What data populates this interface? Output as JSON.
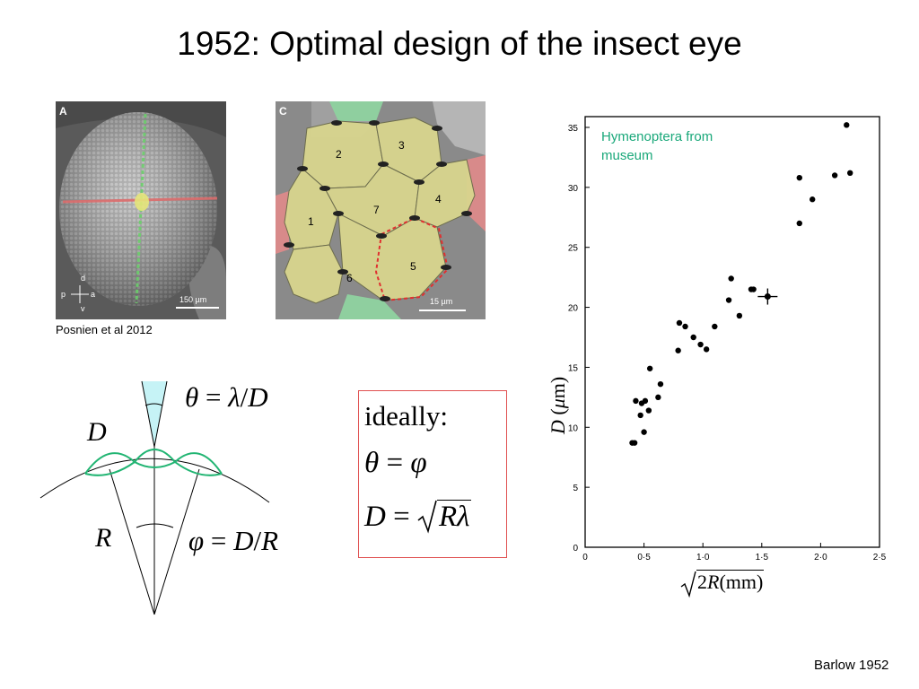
{
  "slide": {
    "title": "1952: Optimal design of the insect eye",
    "credit_left": "Posnien et al 2012",
    "credit_right": "Barlow 1952"
  },
  "panel_a": {
    "letter": "A",
    "scalebar": "150 µm",
    "axes_labels": [
      "d",
      "p",
      "a",
      "v"
    ],
    "colors": {
      "horizontal_line": "#e06a6a",
      "vertical_line": "#6ccf6c",
      "center": "#e6e67a"
    }
  },
  "panel_c": {
    "letter": "C",
    "scalebar": "15 µm",
    "facets": [
      "1",
      "2",
      "3",
      "4",
      "5",
      "6",
      "7"
    ],
    "colors": {
      "facet_fill": "#d8d58e",
      "neighbor_green": "#8fcf9f",
      "neighbor_red": "#d88a8a",
      "outline": "#e03030"
    }
  },
  "diagram": {
    "label_D": "D",
    "label_R": "R",
    "theta_eq": [
      "θ",
      "=",
      "λ",
      "/",
      "D"
    ],
    "phi_eq": [
      "φ",
      "=",
      "D",
      "/",
      "R"
    ],
    "colors": {
      "lens": "#22b573",
      "cone": "#c6f3f6"
    }
  },
  "ideal": {
    "label": "ideally:",
    "eq1": [
      "θ",
      "=",
      "φ"
    ],
    "eq2": [
      "D",
      "=",
      "R",
      "λ"
    ],
    "box_color": "#e05050"
  },
  "chart_data": {
    "type": "scatter",
    "annotation": "Hymenoptera from museum",
    "annotation_lines": [
      "Hymenoptera from",
      "museum"
    ],
    "annotation_color": "#1aa87a",
    "xlabel_parts": [
      "2",
      "R",
      "(mm)"
    ],
    "ylabel_parts": [
      "D",
      "(",
      "μ",
      "m)"
    ],
    "xlim": [
      0,
      2.5
    ],
    "ylim": [
      0,
      35
    ],
    "xticks": [
      "0",
      "0·5",
      "1·0",
      "1·5",
      "2·0",
      "2·5"
    ],
    "yticks": [
      "0",
      "5",
      "10",
      "15",
      "20",
      "25",
      "30",
      "35"
    ],
    "x": [
      0.4,
      0.42,
      0.43,
      0.47,
      0.48,
      0.5,
      0.51,
      0.54,
      0.55,
      0.62,
      0.64,
      0.79,
      0.8,
      0.85,
      0.92,
      0.98,
      1.03,
      1.1,
      1.22,
      1.24,
      1.31,
      1.41,
      1.43,
      1.82,
      1.82,
      1.93,
      2.12,
      2.22,
      2.25
    ],
    "y": [
      8.7,
      8.7,
      12.2,
      11.0,
      12.0,
      9.6,
      12.2,
      11.4,
      14.9,
      12.5,
      13.6,
      16.4,
      18.7,
      18.4,
      17.5,
      16.9,
      16.5,
      18.4,
      20.6,
      22.4,
      19.3,
      21.5,
      21.5,
      27.0,
      30.8,
      29.0,
      31.0,
      35.2,
      31.2
    ],
    "marked_point": {
      "x": 1.55,
      "y": 20.9
    },
    "grid": false
  }
}
